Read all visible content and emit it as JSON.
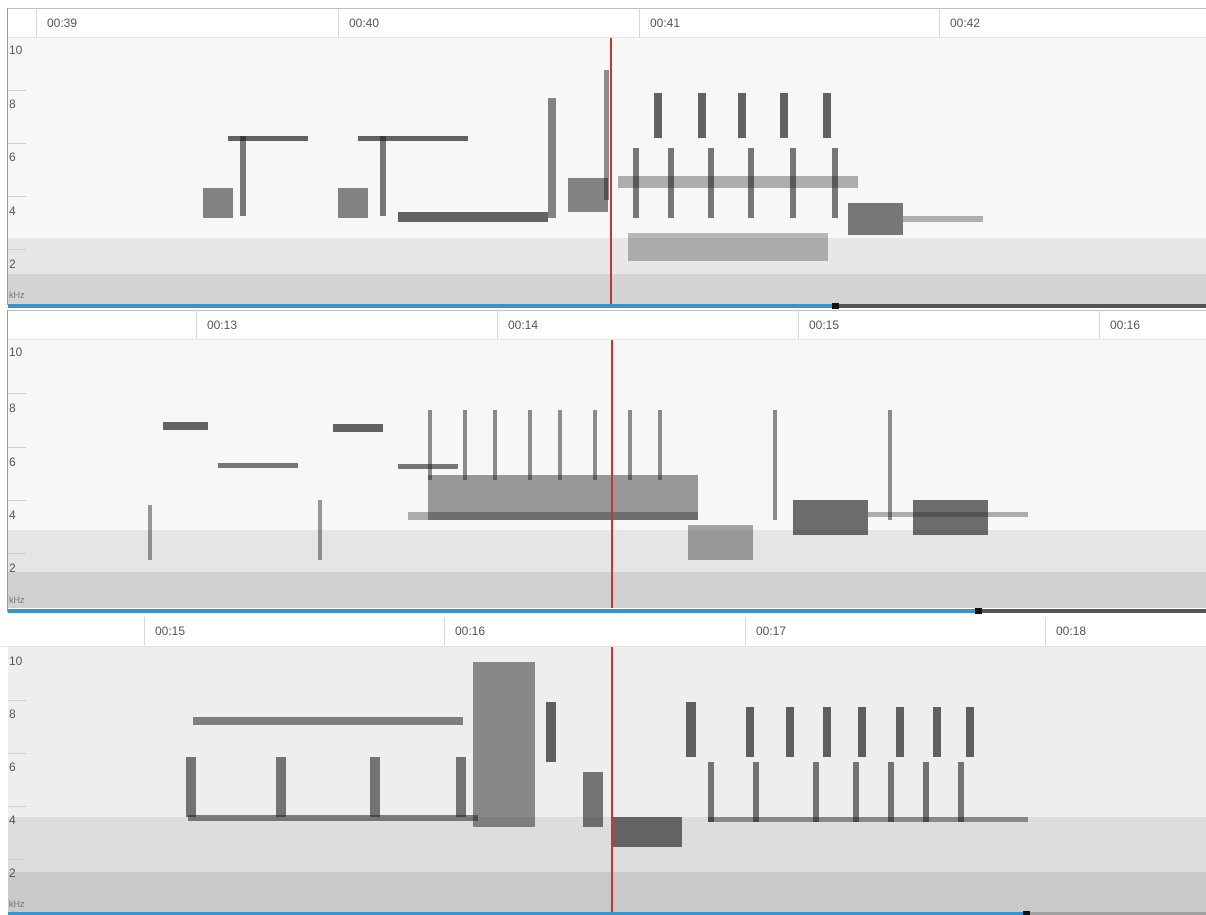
{
  "panels": [
    {
      "time_labels": [
        "00:39",
        "00:40",
        "00:41",
        "00:42"
      ],
      "freq_labels": [
        "10",
        "8",
        "6",
        "4",
        "2"
      ],
      "freq_unit": "kHz",
      "playback_progress": 0.69
    },
    {
      "time_labels": [
        "00:13",
        "00:14",
        "00:15",
        "00:16"
      ],
      "freq_labels": [
        "10",
        "8",
        "6",
        "4",
        "2"
      ],
      "freq_unit": "kHz",
      "playback_progress": 0.81
    },
    {
      "time_labels": [
        "00:15",
        "00:16",
        "00:17",
        "00:18"
      ],
      "freq_labels": [
        "10",
        "8",
        "6",
        "4",
        "2"
      ],
      "freq_unit": "kHz",
      "playback_progress": 0.85
    }
  ],
  "colors": {
    "playhead": "#c0392b",
    "progress": "#3b94c9",
    "spectrogram": "#222222"
  }
}
